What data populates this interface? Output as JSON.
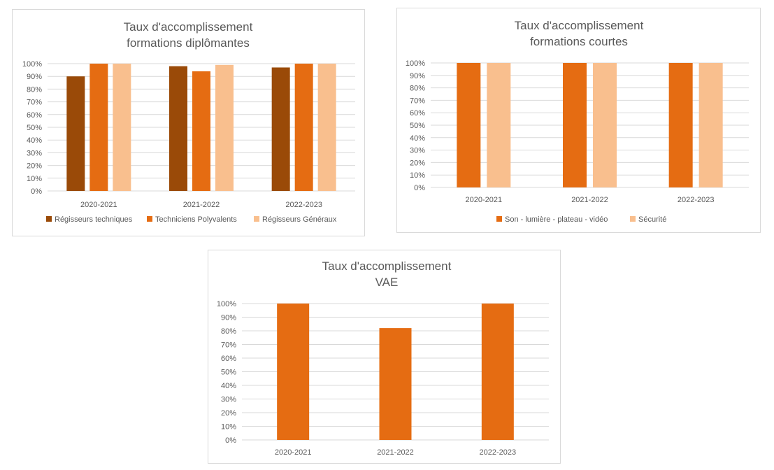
{
  "chart_data": [
    {
      "type": "bar",
      "title_lines": [
        "Taux d'accomplissement",
        "formations diplômantes"
      ],
      "categories": [
        "2020-2021",
        "2021-2022",
        "2022-2023"
      ],
      "series": [
        {
          "name": "Régisseurs techniques",
          "color": "#9A4A08",
          "values": [
            90,
            98,
            97
          ]
        },
        {
          "name": "Techniciens Polyvalents",
          "color": "#E56C12",
          "values": [
            100,
            94,
            100
          ]
        },
        {
          "name": "Régisseurs Généraux",
          "color": "#F9BF8E",
          "values": [
            100,
            99,
            100
          ]
        }
      ],
      "y_ticks": [
        "0%",
        "10%",
        "20%",
        "30%",
        "40%",
        "50%",
        "60%",
        "70%",
        "80%",
        "90%",
        "100%"
      ],
      "ylim": [
        0,
        100
      ],
      "grid": true,
      "legend": "bottom"
    },
    {
      "type": "bar",
      "title_lines": [
        "Taux d'accomplissement",
        "formations courtes"
      ],
      "categories": [
        "2020-2021",
        "2021-2022",
        "2022-2023"
      ],
      "series": [
        {
          "name": "Son - lumière - plateau - vidéo",
          "color": "#E56C12",
          "values": [
            100,
            100,
            100
          ]
        },
        {
          "name": "Sécurité",
          "color": "#F9BF8E",
          "values": [
            100,
            100,
            100
          ]
        }
      ],
      "y_ticks": [
        "0%",
        "10%",
        "20%",
        "30%",
        "40%",
        "50%",
        "60%",
        "70%",
        "80%",
        "90%",
        "100%"
      ],
      "ylim": [
        0,
        100
      ],
      "grid": true,
      "legend": "bottom"
    },
    {
      "type": "bar",
      "title_lines": [
        "Taux d'accomplissement",
        "VAE"
      ],
      "categories": [
        "2020-2021",
        "2021-2022",
        "2022-2023"
      ],
      "series": [
        {
          "name": "",
          "color": "#E56C12",
          "values": [
            100,
            82,
            100
          ]
        }
      ],
      "y_ticks": [
        "0%",
        "10%",
        "20%",
        "30%",
        "40%",
        "50%",
        "60%",
        "70%",
        "80%",
        "90%",
        "100%"
      ],
      "ylim": [
        0,
        100
      ],
      "grid": true,
      "legend": "none"
    }
  ]
}
